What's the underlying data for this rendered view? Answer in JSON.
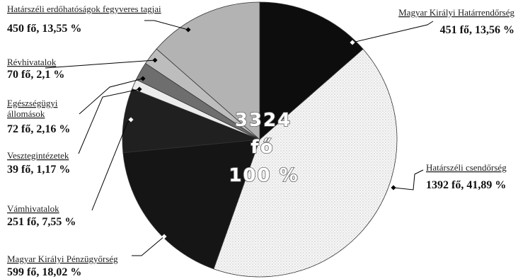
{
  "chart_data": {
    "type": "pie",
    "center_label": {
      "line1": "3324",
      "line2": "fő",
      "line3": "100 %"
    },
    "slices": [
      {
        "name": "Magyar Királyi Határrendőrség",
        "value_text": "451 fő, 13,56 %",
        "count": 451,
        "percent": 13.56,
        "fill": "#0d0d0d",
        "pattern": "solid"
      },
      {
        "name": "Határszéli csendőrség",
        "value_text": "1392 fő, 41,89 %",
        "count": 1392,
        "percent": 41.89,
        "fill": "#f6f6f6",
        "pattern": "dots"
      },
      {
        "name": "Magyar Királyi Pénzügyőrség",
        "value_text": "599 fő, 18,02 %",
        "count": 599,
        "percent": 18.02,
        "fill": "#151515",
        "pattern": "solid"
      },
      {
        "name": "Vámhivatalok",
        "value_text": "251 fő, 7,55 %",
        "count": 251,
        "percent": 7.55,
        "fill": "#202020",
        "pattern": "solid"
      },
      {
        "name": "Vesztegintézetek",
        "value_text": "39 fő, 1,17 %",
        "count": 39,
        "percent": 1.17,
        "fill": "#ececec",
        "pattern": "solid"
      },
      {
        "name": "Egészségügyi állomások",
        "value_text": "72 fő, 2,16 %",
        "count": 72,
        "percent": 2.16,
        "fill": "#6e6e6e",
        "pattern": "solid"
      },
      {
        "name": "Révhivatalok",
        "value_text": "70 fő, 2,1 %",
        "count": 70,
        "percent": 2.1,
        "fill": "#bdbdbd",
        "pattern": "solid"
      },
      {
        "name": "Határszéli erdőhatóságok fegyveres tagjai",
        "value_text": "450 fő, 13,55 %",
        "count": 450,
        "percent": 13.55,
        "fill": "#b3b3b3",
        "pattern": "solid"
      }
    ]
  }
}
